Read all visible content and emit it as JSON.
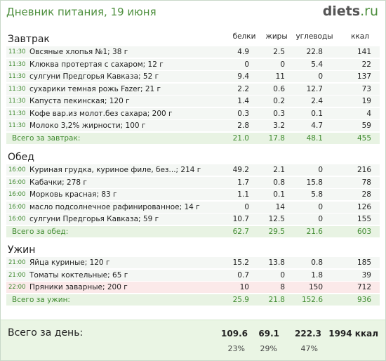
{
  "header": {
    "title": "Дневник питания, 19 июня",
    "logo_main": "diets",
    "logo_tld": ".ru"
  },
  "columns": {
    "protein": "белки",
    "fat": "жиры",
    "carbs": "углеводы",
    "kcal": "ккал"
  },
  "meals": [
    {
      "title": "Завтрак",
      "items": [
        {
          "time": "11:30",
          "name": "Овсяные хлопья №1; 38 г",
          "protein": "4.9",
          "fat": "2.5",
          "carbs": "22.8",
          "kcal": "141"
        },
        {
          "time": "11:30",
          "name": "Клюква протертая с сахаром; 12 г",
          "protein": "0",
          "fat": "0",
          "carbs": "5.4",
          "kcal": "22"
        },
        {
          "time": "11:30",
          "name": "сулгуни Предгорья Кавказа; 52 г",
          "protein": "9.4",
          "fat": "11",
          "carbs": "0",
          "kcal": "137"
        },
        {
          "time": "11:30",
          "name": "сухарики темная рожь Fazer; 21 г",
          "protein": "2.2",
          "fat": "0.6",
          "carbs": "12.7",
          "kcal": "73"
        },
        {
          "time": "11:30",
          "name": "Капуста пекинская; 120 г",
          "protein": "1.4",
          "fat": "0.2",
          "carbs": "2.4",
          "kcal": "19"
        },
        {
          "time": "11:30",
          "name": "Кофе вар.из молот.без сахара; 200 г",
          "protein": "0.3",
          "fat": "0.3",
          "carbs": "0.1",
          "kcal": "4"
        },
        {
          "time": "11:30",
          "name": "Молоко 3,2% жирности; 100 г",
          "protein": "2.8",
          "fat": "3.2",
          "carbs": "4.7",
          "kcal": "59"
        }
      ],
      "total": {
        "label": "Всего за завтрак:",
        "protein": "21.0",
        "fat": "17.8",
        "carbs": "48.1",
        "kcal": "455"
      }
    },
    {
      "title": "Обед",
      "items": [
        {
          "time": "16:00",
          "name": "Куриная грудка, куриное филе, без...; 214 г",
          "protein": "49.2",
          "fat": "2.1",
          "carbs": "0",
          "kcal": "216"
        },
        {
          "time": "16:00",
          "name": "Кабачки; 278 г",
          "protein": "1.7",
          "fat": "0.8",
          "carbs": "15.8",
          "kcal": "78"
        },
        {
          "time": "16:00",
          "name": "Морковь красная; 83 г",
          "protein": "1.1",
          "fat": "0.1",
          "carbs": "5.8",
          "kcal": "28"
        },
        {
          "time": "16:00",
          "name": "масло подсолнечное рафинированное; 14 г",
          "protein": "0",
          "fat": "14",
          "carbs": "0",
          "kcal": "126"
        },
        {
          "time": "16:00",
          "name": "сулгуни Предгорья Кавказа; 59 г",
          "protein": "10.7",
          "fat": "12.5",
          "carbs": "0",
          "kcal": "155"
        }
      ],
      "total": {
        "label": "Всего за обед:",
        "protein": "62.7",
        "fat": "29.5",
        "carbs": "21.6",
        "kcal": "603"
      }
    },
    {
      "title": "Ужин",
      "items": [
        {
          "time": "21:00",
          "name": "Яйца куриные; 120 г",
          "protein": "15.2",
          "fat": "13.8",
          "carbs": "0.8",
          "kcal": "185"
        },
        {
          "time": "21:00",
          "name": "Томаты коктельные; 65 г",
          "protein": "0.7",
          "fat": "0",
          "carbs": "1.8",
          "kcal": "39"
        },
        {
          "time": "22:00",
          "name": "Пряники заварные; 200 г",
          "protein": "10",
          "fat": "8",
          "carbs": "150",
          "kcal": "712",
          "highlight": true
        }
      ],
      "total": {
        "label": "Всего за ужин:",
        "protein": "25.9",
        "fat": "21.8",
        "carbs": "152.6",
        "kcal": "936"
      }
    }
  ],
  "day_total": {
    "label": "Всего за день:",
    "protein": "109.6",
    "fat": "69.1",
    "carbs": "222.3",
    "kcal": "1994 ккал",
    "protein_pct": "23%",
    "fat_pct": "29%",
    "carbs_pct": "47%"
  },
  "colors": {
    "accent": "#4e8f3e",
    "row_bg": "#f4f7f4",
    "total_bg": "#e8f3e3",
    "highlight_bg": "#fbe9e9",
    "day_bg": "#eaf5e4"
  }
}
